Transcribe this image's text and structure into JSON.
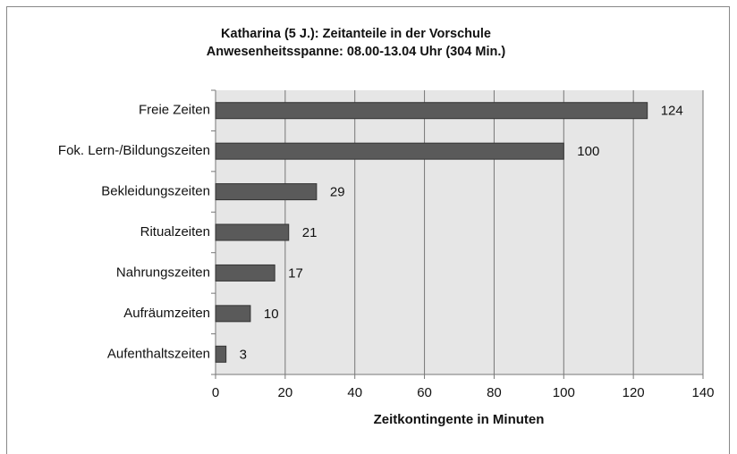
{
  "chart_data": {
    "type": "barh",
    "title": "Katharina (5 J.): Zeitanteile in der Vorschule",
    "subtitle": "Anwesenheitsspanne: 08.00-13.04 Uhr (304 Min.)",
    "x_label": "Zeitkontingente in Minuten",
    "categories": [
      "Freie Zeiten",
      "Fok. Lern-/Bildungszeiten",
      "Bekleidungszeiten",
      "Ritualzeiten",
      "Nahrungszeiten",
      "Aufräumzeiten",
      "Aufenthaltszeiten"
    ],
    "values": [
      124,
      100,
      29,
      21,
      17,
      10,
      3
    ],
    "color": "#5a5a5a",
    "xlim": [
      0,
      140
    ],
    "xticks": [
      0,
      20,
      40,
      60,
      80,
      100,
      120,
      140
    ],
    "grid": true
  }
}
